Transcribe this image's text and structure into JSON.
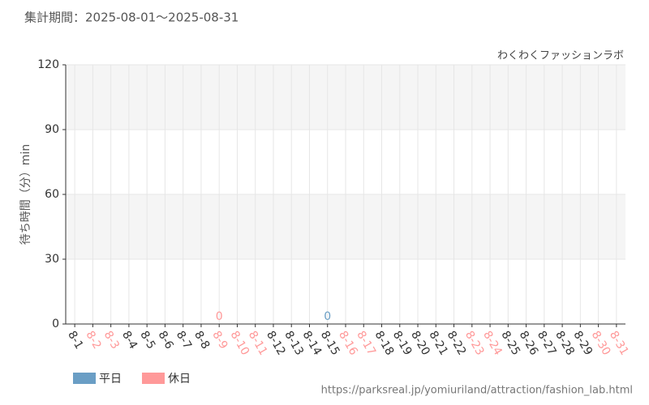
{
  "chart_data": {
    "type": "bar",
    "title": "集計期間：2025-08-01～2025-08-31",
    "source": "わくわくファッションラボ",
    "y_label": "待ち時間（分）min",
    "url": "https://parksreal.jp/yomiuriland/attraction/fashion_lab.html",
    "categories": [
      "8-1",
      "8-2",
      "8-3",
      "8-4",
      "8-5",
      "8-6",
      "8-7",
      "8-8",
      "8-9",
      "8-10",
      "8-11",
      "8-12",
      "8-13",
      "8-14",
      "8-15",
      "8-16",
      "8-17",
      "8-18",
      "8-19",
      "8-20",
      "8-21",
      "8-22",
      "8-23",
      "8-24",
      "8-25",
      "8-26",
      "8-27",
      "8-28",
      "8-29",
      "8-30",
      "8-31"
    ],
    "label_colors": [
      "#333333",
      "#ff9999",
      "#ff9999",
      "#333333",
      "#333333",
      "#333333",
      "#333333",
      "#333333",
      "#ff9999",
      "#ff9999",
      "#ff9999",
      "#333333",
      "#333333",
      "#333333",
      "#333333",
      "#ff9999",
      "#ff9999",
      "#333333",
      "#333333",
      "#333333",
      "#333333",
      "#333333",
      "#ff9999",
      "#ff9999",
      "#333333",
      "#333333",
      "#333333",
      "#333333",
      "#333333",
      "#ff9999",
      "#ff9999"
    ],
    "series": [
      {
        "name": "平日",
        "color": "#6a9ec5",
        "values": [
          null,
          null,
          null,
          null,
          null,
          null,
          null,
          null,
          null,
          null,
          null,
          null,
          null,
          null,
          0,
          null,
          null,
          null,
          null,
          null,
          null,
          null,
          null,
          null,
          null,
          null,
          null,
          null,
          null,
          null,
          null
        ]
      },
      {
        "name": "休日",
        "color": "#ff9999",
        "values": [
          null,
          null,
          null,
          null,
          null,
          null,
          null,
          null,
          0,
          null,
          null,
          null,
          null,
          null,
          null,
          null,
          null,
          null,
          null,
          null,
          null,
          null,
          null,
          null,
          null,
          null,
          null,
          null,
          null,
          null,
          null
        ]
      }
    ],
    "ylim": [
      0,
      120
    ],
    "yticks": [
      0,
      30,
      60,
      90,
      120
    ],
    "grid": true
  }
}
